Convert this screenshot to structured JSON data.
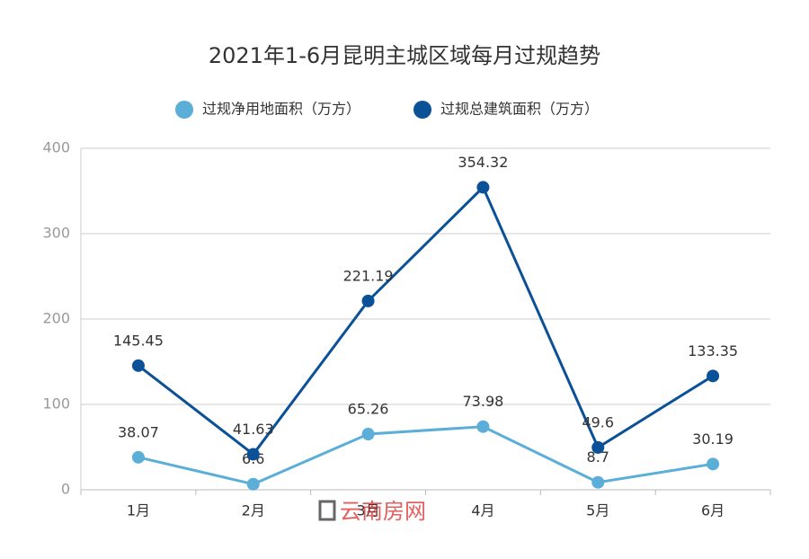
{
  "chart_data": {
    "type": "line",
    "title": "2021年1-6月昆明主城区域每月过规趋势",
    "categories": [
      "1月",
      "2月",
      "3月",
      "4月",
      "5月",
      "6月"
    ],
    "series": [
      {
        "name": "过规净用地面积（万方）",
        "color": "#5aaed8",
        "values": [
          38.07,
          6.6,
          65.26,
          73.98,
          8.7,
          30.19
        ]
      },
      {
        "name": "过规总建筑面积（万方）",
        "color": "#0b5197",
        "values": [
          145.45,
          41.63,
          221.19,
          354.32,
          49.6,
          133.35
        ]
      }
    ],
    "ylim": [
      0,
      400
    ],
    "yticks": [
      0,
      100,
      200,
      300,
      400
    ],
    "grid": true,
    "legend": "top",
    "watermark": "云南房网"
  }
}
